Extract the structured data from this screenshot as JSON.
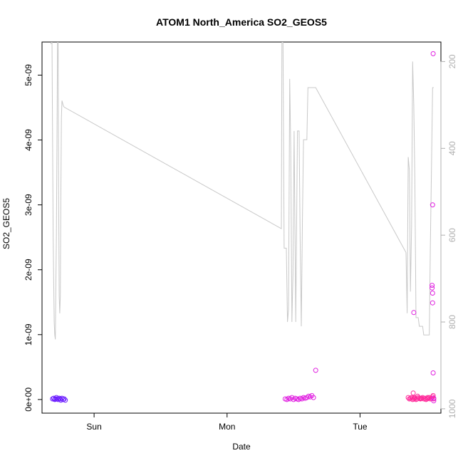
{
  "chart_data": {
    "type": "scatter",
    "title": "ATOM1 North_America SO2_GEOS5",
    "xlabel": "Date",
    "ylabel": "SO2_GEOS5",
    "x_ticks": [
      {
        "label": "Sun",
        "x": 24
      },
      {
        "label": "Mon",
        "x": 48
      },
      {
        "label": "Tue",
        "x": 72
      }
    ],
    "xlim": [
      14.6,
      86.6
    ],
    "y_ticks": [
      {
        "label": "0e+00",
        "value": 0
      },
      {
        "label": "1e-09",
        "value": 1e-09
      },
      {
        "label": "2e-09",
        "value": 2e-09
      },
      {
        "label": "3e-09",
        "value": 3e-09
      },
      {
        "label": "4e-09",
        "value": 4e-09
      },
      {
        "label": "5e-09",
        "value": 5e-09
      }
    ],
    "ylim": [
      -2.1e-10,
      5.51e-09
    ],
    "y2_label": "",
    "y2_ticks": [
      "200",
      "400",
      "600",
      "800",
      "1000"
    ],
    "y2_values": [
      200,
      400,
      600,
      800,
      1000
    ],
    "y2lim": [
      1010,
      155
    ],
    "colors": {
      "series1": "#6a1bff",
      "series2": "#e020e0",
      "series3": "#ff2a9a",
      "pressure": "#c8c8c8",
      "axis": "#000000",
      "axis2": "#b0b0b0"
    },
    "series": [
      {
        "color": "#6a1bff",
        "x": [
          16.5,
          16.7,
          16.9,
          17.0,
          17.2,
          17.3,
          17.5,
          17.7,
          17.9,
          18.0,
          18.2,
          18.4,
          18.6,
          18.8
        ],
        "y": [
          1e-11,
          2e-11,
          0,
          1e-11,
          3e-11,
          1e-11,
          0,
          2e-11,
          1e-11,
          -1e-11,
          2e-11,
          0,
          1e-11,
          -1e-11
        ]
      },
      {
        "color": "#e020e0",
        "x": [
          58.5,
          58.8,
          59.1,
          59.4,
          59.7,
          60.0,
          60.3,
          60.6,
          60.9,
          61.2,
          61.5,
          61.8,
          62.1,
          62.4,
          62.7,
          63.0,
          63.3,
          63.6,
          64.0
        ],
        "y": [
          1e-11,
          0,
          2e-11,
          1e-11,
          3e-11,
          0,
          2e-11,
          1e-11,
          0,
          2e-11,
          1e-11,
          3e-11,
          2e-11,
          3e-11,
          5e-11,
          4e-11,
          6e-11,
          3e-11,
          4.5e-10
        ]
      },
      {
        "color": "#ff2a9a",
        "x": [
          80.7,
          80.9,
          81.1,
          81.3,
          81.5,
          81.7,
          81.9,
          82.1,
          82.3,
          82.5,
          82.7,
          82.9,
          83.1,
          83.3,
          83.5,
          83.7,
          83.9,
          84.1,
          84.3,
          84.5,
          84.7,
          84.9,
          85.1,
          85.3,
          81.6,
          81.8,
          82.4,
          83.0,
          84.2,
          85.2
        ],
        "y": [
          3e-11,
          1e-11,
          2e-11,
          3e-11,
          0,
          1e-11,
          2e-11,
          0,
          1e-11,
          3e-11,
          2e-11,
          1e-11,
          2e-11,
          3e-11,
          1e-11,
          2e-11,
          0,
          1e-11,
          2e-11,
          3e-11,
          1e-11,
          2e-11,
          4e-11,
          1e-11,
          1e-10,
          3e-11,
          5e-11,
          2e-11,
          3e-11,
          6e-11
        ]
      },
      {
        "color": "#e020e0",
        "x": [
          81.7,
          85.0,
          85.0,
          85.1,
          85.1,
          85.1,
          85.2,
          85.2,
          85.3,
          85.3
        ],
        "y": [
          1.34e-09,
          1.76e-09,
          1.72e-09,
          1.64e-09,
          1.49e-09,
          3e-09,
          5.33e-09,
          4.1e-10,
          2e-11,
          -2e-11
        ]
      }
    ],
    "pressure_line": {
      "color": "#c8c8c8",
      "x": [
        16.2,
        16.4,
        16.6,
        16.8,
        16.9,
        17.0,
        17.1,
        17.2,
        17.3,
        17.4,
        17.5,
        17.6,
        17.7,
        17.8,
        17.9,
        18.0,
        18.1,
        18.2,
        18.3,
        18.4,
        18.5,
        18.6,
        57.8,
        57.9,
        58.1,
        58.3,
        58.5,
        58.7,
        58.9,
        59.1,
        59.3,
        59.5,
        59.7,
        59.9,
        60.1,
        60.4,
        60.7,
        61.0,
        61.2,
        61.4,
        61.6,
        61.8,
        62.0,
        62.2,
        62.4,
        62.6,
        62.8,
        63.0,
        63.2,
        63.4,
        63.6,
        63.8,
        64.0,
        80.3,
        80.5,
        80.7,
        80.9,
        81.1,
        81.3,
        81.5,
        81.7,
        81.9,
        82.1,
        82.3,
        82.5,
        82.7,
        82.9,
        83.1,
        83.3,
        83.5,
        83.7,
        83.9,
        84.1,
        84.3,
        84.5,
        84.7,
        84.9,
        85.1,
        85.3
      ],
      "y": [
        160,
        150,
        600,
        800,
        830,
        840,
        720,
        600,
        380,
        150,
        150,
        500,
        740,
        780,
        740,
        520,
        330,
        290,
        295,
        300,
        303,
        305,
        585,
        155,
        155,
        630,
        630,
        630,
        800,
        770,
        240,
        400,
        800,
        690,
        360,
        800,
        360,
        360,
        610,
        810,
        560,
        380,
        380,
        380,
        380,
        260,
        260,
        260,
        260,
        260,
        260,
        260,
        260,
        640,
        780,
        420,
        450,
        730,
        580,
        200,
        300,
        470,
        790,
        790,
        790,
        810,
        810,
        810,
        810,
        830,
        830,
        830,
        830,
        830,
        830,
        620,
        440,
        260,
        260
      ]
    }
  }
}
